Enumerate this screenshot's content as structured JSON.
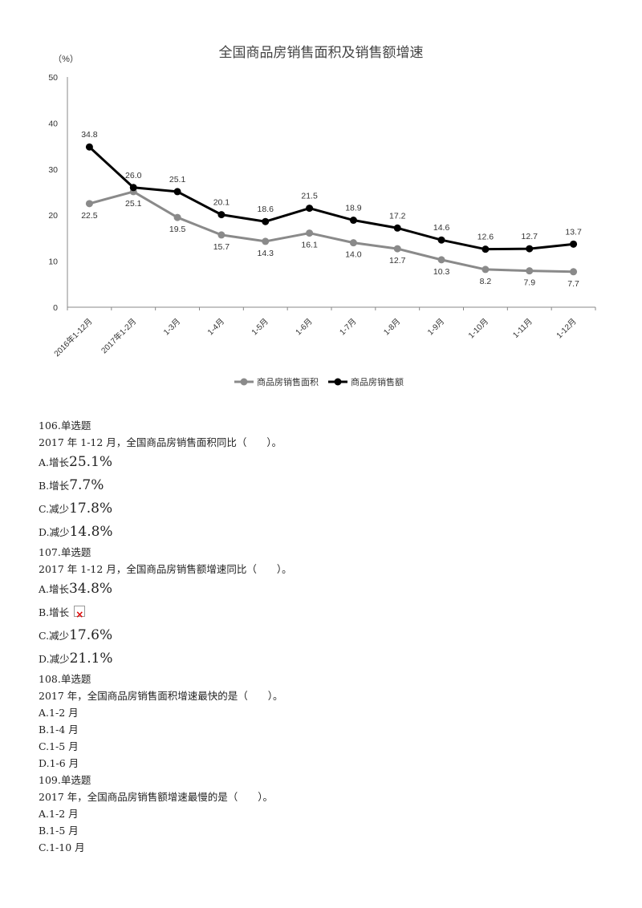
{
  "chart_data": {
    "type": "line",
    "title": "全国商品房销售面积及销售额增速",
    "ylabel": "（%）",
    "xlabel": "",
    "ylim": [
      0,
      50
    ],
    "yticks": [
      0,
      10,
      20,
      30,
      40,
      50
    ],
    "grid": false,
    "legend_position": "bottom",
    "categories": [
      "2016年1-12月",
      "2017年1-2月",
      "1-3月",
      "1-4月",
      "1-5月",
      "1-6月",
      "1-7月",
      "1-8月",
      "1-9月",
      "1-10月",
      "1-11月",
      "1-12月"
    ],
    "series": [
      {
        "name": "商品房销售面积",
        "color": "#8a8a8a",
        "values": [
          22.5,
          25.1,
          19.5,
          15.7,
          14.3,
          16.1,
          14.0,
          12.7,
          10.3,
          8.2,
          7.9,
          7.7
        ]
      },
      {
        "name": "商品房销售额",
        "color": "#000000",
        "values": [
          34.8,
          26.0,
          25.1,
          20.1,
          18.6,
          21.5,
          18.9,
          17.2,
          14.6,
          12.6,
          12.7,
          13.7
        ]
      }
    ]
  },
  "questions": [
    {
      "num": "106.单选题",
      "stem": "2017 年 1-12 月，全国商品房销售面积同比（　　）。",
      "options": [
        {
          "label": "A.",
          "prefix": "增长",
          "value": "25.1%"
        },
        {
          "label": "B.",
          "prefix": "增长",
          "value": "7.7%"
        },
        {
          "label": "C.",
          "prefix": "减少",
          "value": "17.8%"
        },
        {
          "label": "D.",
          "prefix": "减少",
          "value": "14.8%"
        }
      ]
    },
    {
      "num": "107.单选题",
      "stem": "2017 年 1-12 月，全国商品房销售额增速同比（　　）。",
      "options": [
        {
          "label": "A.",
          "prefix": "增长",
          "value": "34.8%"
        },
        {
          "label": "B.",
          "prefix": "增长",
          "value": ""
        },
        {
          "label": "C.",
          "prefix": "减少",
          "value": "17.6%"
        },
        {
          "label": "D.",
          "prefix": "减少",
          "value": "21.1%"
        }
      ]
    },
    {
      "num": "108.单选题",
      "stem": "2017 年，全国商品房销售面积增速最快的是（　　）。",
      "options": [
        {
          "label": "A.",
          "text": "1-2 月"
        },
        {
          "label": "B.",
          "text": "1-4 月"
        },
        {
          "label": "C.",
          "text": "1-5 月"
        },
        {
          "label": "D.",
          "text": "1-6 月"
        }
      ]
    },
    {
      "num": "109.单选题",
      "stem": "2017 年，全国商品房销售额增速最慢的是（　　）。",
      "options": [
        {
          "label": "A.",
          "text": "1-2 月"
        },
        {
          "label": "B.",
          "text": "1-5 月"
        },
        {
          "label": "C.",
          "text": "1-10 月"
        }
      ]
    }
  ]
}
